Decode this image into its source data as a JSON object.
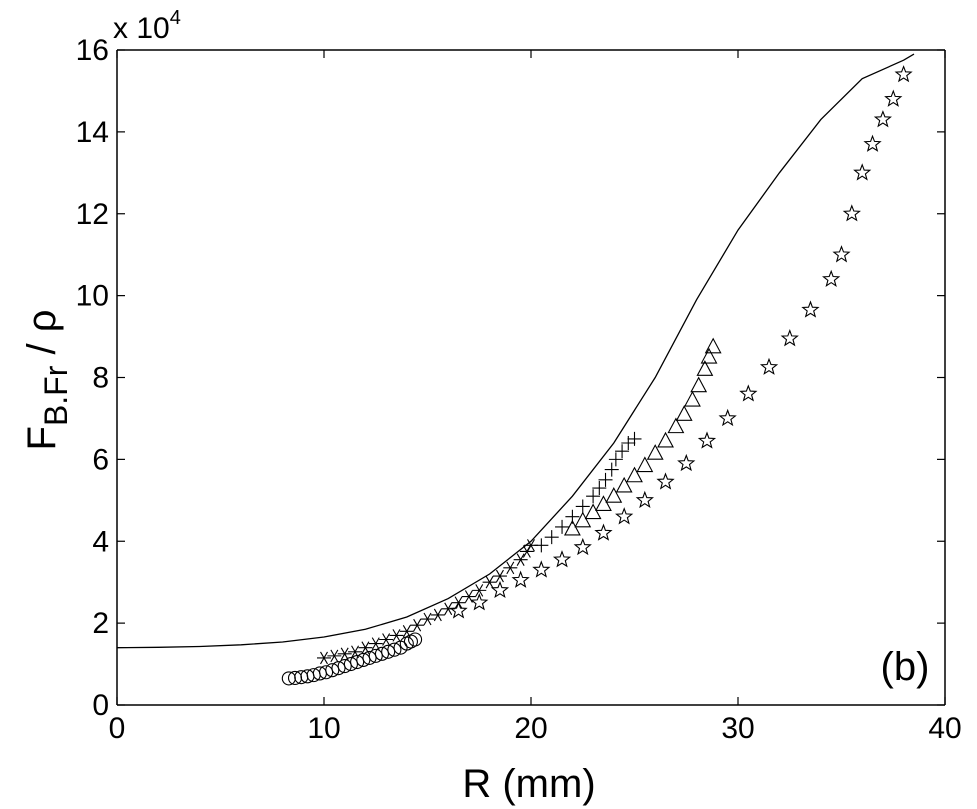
{
  "chart_data": {
    "type": "scatter",
    "title": "",
    "xlabel": "R (mm)",
    "ylabel": {
      "main": "F",
      "sub": "B.Fr",
      "rest": " / ρ"
    },
    "y_multiplier": "x 10",
    "y_multiplier_exp": "4",
    "panel_label": "(b)",
    "xlim": [
      0,
      40
    ],
    "ylim": [
      0,
      16
    ],
    "x_ticks": [
      0,
      10,
      20,
      30,
      40
    ],
    "y_ticks": [
      0,
      2,
      4,
      6,
      8,
      10,
      12,
      14,
      16
    ],
    "grid": false,
    "legend": "none",
    "fit_curve": {
      "type": "line",
      "points": [
        [
          0,
          1.4
        ],
        [
          2,
          1.41
        ],
        [
          4,
          1.43
        ],
        [
          6,
          1.47
        ],
        [
          8,
          1.54
        ],
        [
          10,
          1.66
        ],
        [
          12,
          1.85
        ],
        [
          14,
          2.15
        ],
        [
          16,
          2.6
        ],
        [
          18,
          3.2
        ],
        [
          20,
          4.0
        ],
        [
          22,
          5.1
        ],
        [
          24,
          6.4
        ],
        [
          26,
          8.0
        ],
        [
          28,
          9.9
        ],
        [
          30,
          11.6
        ],
        [
          32,
          13.0
        ],
        [
          34,
          14.3
        ],
        [
          36,
          15.3
        ],
        [
          38,
          15.75
        ],
        [
          38.5,
          15.9
        ]
      ]
    },
    "series": [
      {
        "marker": "circle",
        "points": [
          [
            8.3,
            0.65
          ],
          [
            8.6,
            0.66
          ],
          [
            8.9,
            0.68
          ],
          [
            9.2,
            0.7
          ],
          [
            9.5,
            0.73
          ],
          [
            9.8,
            0.77
          ],
          [
            10.1,
            0.8
          ],
          [
            10.4,
            0.85
          ],
          [
            10.7,
            0.9
          ],
          [
            11.0,
            0.95
          ],
          [
            11.3,
            1.0
          ],
          [
            11.6,
            1.05
          ],
          [
            11.9,
            1.1
          ],
          [
            12.2,
            1.15
          ],
          [
            12.5,
            1.2
          ],
          [
            12.8,
            1.25
          ],
          [
            13.1,
            1.3
          ],
          [
            13.4,
            1.35
          ],
          [
            13.7,
            1.4
          ],
          [
            14.0,
            1.5
          ],
          [
            14.2,
            1.55
          ],
          [
            14.4,
            1.6
          ]
        ]
      },
      {
        "marker": "star6",
        "points": [
          [
            10.0,
            1.15
          ],
          [
            10.5,
            1.2
          ],
          [
            11.0,
            1.25
          ],
          [
            11.5,
            1.3
          ],
          [
            12.0,
            1.4
          ],
          [
            12.5,
            1.5
          ],
          [
            13.0,
            1.6
          ],
          [
            13.5,
            1.7
          ],
          [
            14.0,
            1.8
          ],
          [
            14.5,
            1.95
          ],
          [
            15.0,
            2.1
          ],
          [
            15.5,
            2.2
          ],
          [
            16.0,
            2.35
          ],
          [
            16.5,
            2.5
          ],
          [
            17.0,
            2.65
          ],
          [
            17.5,
            2.8
          ],
          [
            18.0,
            3.0
          ],
          [
            18.5,
            3.15
          ],
          [
            19.0,
            3.35
          ],
          [
            19.5,
            3.55
          ],
          [
            19.8,
            3.75
          ],
          [
            20.0,
            3.9
          ]
        ]
      },
      {
        "marker": "plus",
        "points": [
          [
            20.5,
            3.9
          ],
          [
            21.0,
            4.1
          ],
          [
            21.5,
            4.35
          ],
          [
            22.0,
            4.6
          ],
          [
            22.5,
            4.85
          ],
          [
            23.0,
            5.1
          ],
          [
            23.3,
            5.3
          ],
          [
            23.6,
            5.5
          ],
          [
            23.9,
            5.75
          ],
          [
            24.1,
            6.0
          ],
          [
            24.4,
            6.2
          ],
          [
            24.7,
            6.4
          ],
          [
            25.0,
            6.5
          ]
        ]
      },
      {
        "marker": "triangle",
        "points": [
          [
            22.0,
            4.3
          ],
          [
            22.5,
            4.5
          ],
          [
            23.0,
            4.7
          ],
          [
            23.5,
            4.9
          ],
          [
            24.0,
            5.1
          ],
          [
            24.5,
            5.35
          ],
          [
            25.0,
            5.6
          ],
          [
            25.5,
            5.85
          ],
          [
            26.0,
            6.15
          ],
          [
            26.5,
            6.45
          ],
          [
            27.0,
            6.8
          ],
          [
            27.4,
            7.1
          ],
          [
            27.8,
            7.45
          ],
          [
            28.1,
            7.8
          ],
          [
            28.4,
            8.2
          ],
          [
            28.6,
            8.5
          ],
          [
            28.8,
            8.75
          ]
        ]
      },
      {
        "marker": "pentagram",
        "points": [
          [
            16.5,
            2.3
          ],
          [
            17.5,
            2.5
          ],
          [
            18.5,
            2.8
          ],
          [
            19.5,
            3.05
          ],
          [
            20.5,
            3.3
          ],
          [
            21.5,
            3.55
          ],
          [
            22.5,
            3.85
          ],
          [
            23.5,
            4.2
          ],
          [
            24.5,
            4.6
          ],
          [
            25.5,
            5.0
          ],
          [
            26.5,
            5.45
          ],
          [
            27.5,
            5.9
          ],
          [
            28.5,
            6.45
          ],
          [
            29.5,
            7.0
          ],
          [
            30.5,
            7.6
          ],
          [
            31.5,
            8.25
          ],
          [
            32.5,
            8.95
          ],
          [
            33.5,
            9.65
          ],
          [
            34.5,
            10.4
          ],
          [
            35.0,
            11.0
          ],
          [
            35.5,
            12.0
          ],
          [
            36.0,
            13.0
          ],
          [
            36.5,
            13.7
          ],
          [
            37.0,
            14.3
          ],
          [
            37.5,
            14.8
          ],
          [
            38.0,
            15.4
          ]
        ]
      }
    ]
  }
}
